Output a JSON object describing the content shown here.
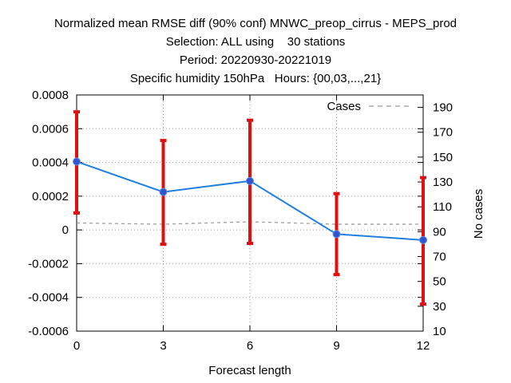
{
  "chart_data": {
    "type": "line",
    "title": [
      "Normalized mean RMSE diff (90% conf) MNWC_preop_cirrus - MEPS_prod",
      "Selection: ALL using    30 stations",
      "Period: 20220930-20221019",
      "Specific humidity 150hPa   Hours: {00,03,...,21}"
    ],
    "xlabel": "Forecast length",
    "ylabel_right": "No cases",
    "x": [
      0,
      3,
      6,
      9,
      12
    ],
    "xticks": [
      "0",
      "3",
      "6",
      "9",
      "12"
    ],
    "yticks_left": [
      "0.0008",
      "0.0006",
      "0.0004",
      "0.0002",
      "0",
      "-0.0002",
      "-0.0004",
      "-0.0006"
    ],
    "yticks_right": [
      "190",
      "170",
      "150",
      "130",
      "110",
      "90",
      "70",
      "50",
      "30",
      "10"
    ],
    "xlim": [
      0,
      12
    ],
    "ylim": [
      -0.0006,
      0.0008
    ],
    "ylim_right": [
      10,
      200
    ],
    "grid": true,
    "series": [
      {
        "values": [
          0.000405,
          0.000225,
          0.00029,
          -2.5e-05,
          -6e-05
        ],
        "ci_upper": [
          0.0007,
          0.00053,
          0.00065,
          0.000215,
          0.00031
        ],
        "ci_lower": [
          0.0001,
          -8.5e-05,
          -8e-05,
          -0.000265,
          -0.00044
        ],
        "color": "#1f7fe0",
        "marker_color": "#3355cc",
        "errorbar_color": "#e01010"
      },
      {
        "name": "Cases",
        "axis": "right",
        "values": [
          97,
          96,
          98,
          96,
          96
        ],
        "color": "#999999",
        "style": "dashed"
      }
    ],
    "legend": {
      "position": "top-right",
      "entries": [
        "Cases"
      ]
    }
  }
}
